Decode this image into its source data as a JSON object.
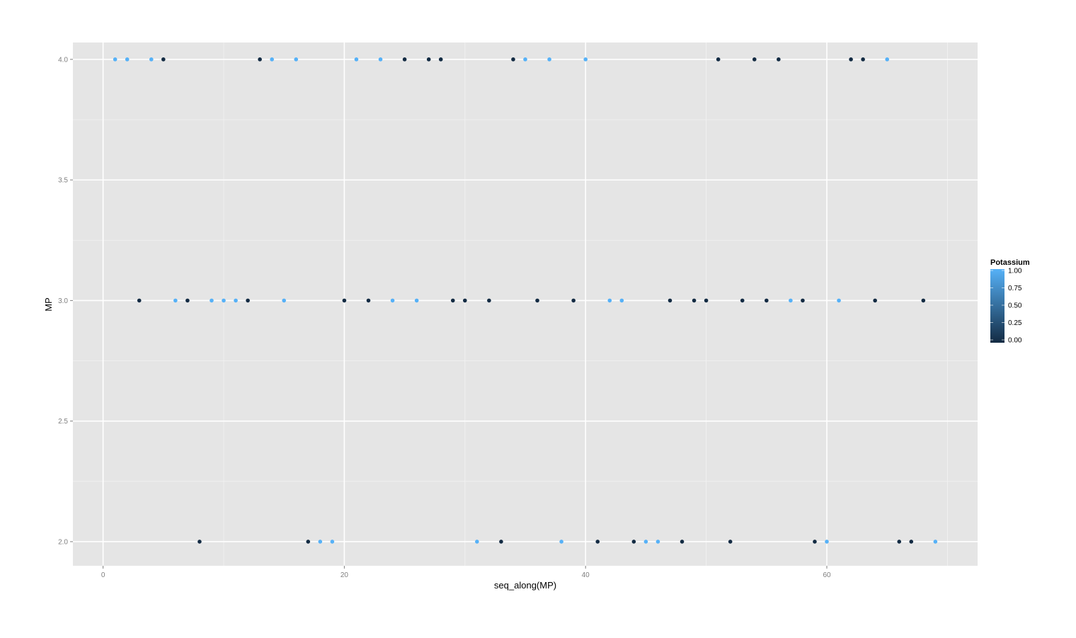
{
  "chart_data": {
    "type": "scatter",
    "xlabel": "seq_along(MP)",
    "ylabel": "MP",
    "xlim": [
      -2.5,
      72.5
    ],
    "ylim": [
      1.9,
      4.07
    ],
    "x_ticks": [
      0,
      20,
      40,
      60
    ],
    "x_tick_labels": [
      "0",
      "20",
      "40",
      "60"
    ],
    "y_ticks": [
      2.0,
      2.5,
      3.0,
      3.5,
      4.0
    ],
    "y_tick_labels": [
      "2.0",
      "2.5",
      "3.0",
      "3.5",
      "4.0"
    ],
    "grid": true,
    "background": "#E5E5E5",
    "legend": {
      "title": "Potassium",
      "placement": "right",
      "type": "colorbar",
      "labels": [
        "1.00",
        "0.75",
        "0.50",
        "0.25",
        "0.00"
      ],
      "values": [
        1,
        0.75,
        0.5,
        0.25,
        0
      ],
      "low_color": "#132B43",
      "high_color": "#56B1F7"
    },
    "points_by_y": [
      {
        "y": 4.0,
        "x": [
          1,
          2,
          4,
          5,
          13,
          14,
          16,
          21,
          23,
          25,
          27,
          28,
          34,
          35,
          37,
          40,
          51,
          54,
          56,
          62,
          63,
          65
        ],
        "potassium": [
          1,
          1,
          1,
          0,
          0,
          1,
          1,
          1,
          1,
          0,
          0,
          0,
          0,
          1,
          1,
          1,
          0,
          0,
          0,
          0,
          0,
          1
        ]
      },
      {
        "y": 3.0,
        "x": [
          3,
          6,
          7,
          9,
          10,
          11,
          12,
          15,
          20,
          22,
          24,
          26,
          29,
          30,
          32,
          36,
          39,
          42,
          43,
          47,
          49,
          50,
          53,
          55,
          57,
          58,
          61,
          64,
          68
        ],
        "potassium": [
          0,
          1,
          0,
          1,
          1,
          1,
          0,
          1,
          0,
          0,
          1,
          1,
          0,
          0,
          0,
          0,
          0,
          1,
          1,
          0,
          0,
          0,
          0,
          0,
          1,
          0,
          1,
          0,
          0
        ]
      },
      {
        "y": 2.0,
        "x": [
          8,
          17,
          18,
          19,
          31,
          33,
          38,
          41,
          44,
          45,
          46,
          48,
          52,
          59,
          60,
          66,
          67,
          69
        ],
        "potassium": [
          0,
          0,
          1,
          1,
          1,
          0,
          1,
          0,
          0,
          1,
          1,
          0,
          0,
          0,
          1,
          0,
          0,
          1
        ]
      }
    ]
  }
}
